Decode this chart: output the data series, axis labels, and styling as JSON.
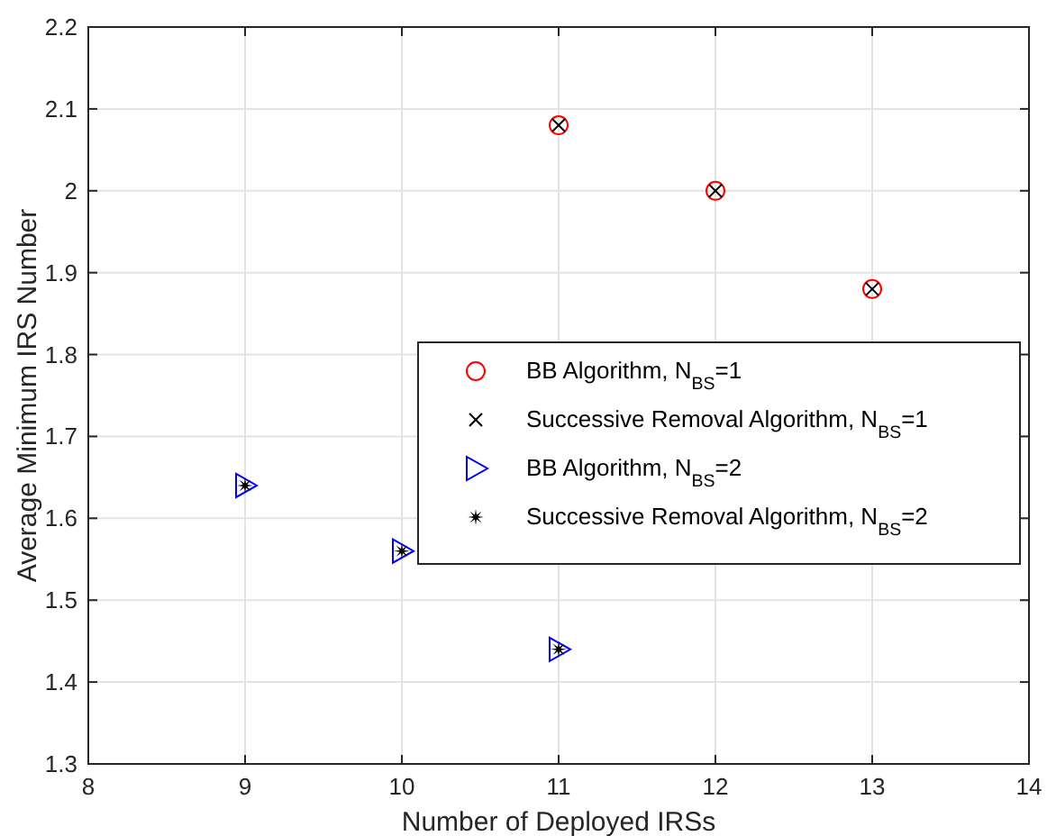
{
  "chart_data": {
    "type": "scatter",
    "xlabel": "Number of Deployed IRSs",
    "ylabel": "Average Minimum IRS Number",
    "xlim": [
      8,
      14
    ],
    "xticks": [
      8,
      9,
      10,
      11,
      12,
      13,
      14
    ],
    "ylim": [
      1.3,
      2.2
    ],
    "yticks": [
      1.3,
      1.4,
      1.5,
      1.6,
      1.7,
      1.8,
      1.9,
      2,
      2.1,
      2.2
    ],
    "grid": true,
    "legend": "right",
    "series": [
      {
        "name": "BB Algorithm, N$_{BS}$=1",
        "color": "#ff0000",
        "marker": "circle",
        "x": [
          11,
          12,
          13
        ],
        "values": [
          2.08,
          2.0,
          1.88
        ]
      },
      {
        "name": "Successive Removal Algorithm, N$_{BS}$=1",
        "color": "#000000",
        "marker": "cross",
        "x": [
          11,
          12,
          13
        ],
        "values": [
          2.08,
          2.0,
          1.88
        ]
      },
      {
        "name": "BB Algorithm, N$_{BS}$=2",
        "color": "#0000ff",
        "marker": "triangle",
        "x": [
          9,
          10,
          11
        ],
        "values": [
          1.64,
          1.56,
          1.44
        ]
      },
      {
        "name": "Successive Removal Algorithm, N$_{BS}$=2",
        "color": "#000000",
        "marker": "star",
        "x": [
          9,
          10,
          11
        ],
        "values": [
          1.64,
          1.56,
          1.44
        ]
      }
    ]
  }
}
